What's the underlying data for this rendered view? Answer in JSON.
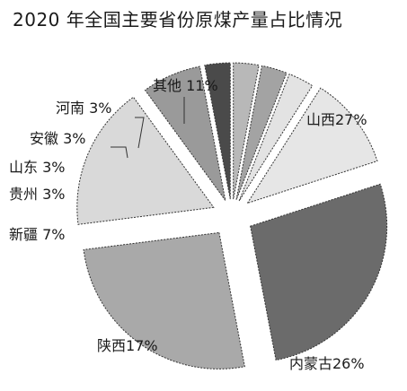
{
  "chart_data": {
    "type": "pie",
    "title": "2020 年全国主要省份原煤产量占比情况",
    "slices": [
      {
        "name": "山西",
        "value": 27,
        "label": "山西27%",
        "color": "#6b6b6b"
      },
      {
        "name": "内蒙古",
        "value": 26,
        "label": "内蒙古26%",
        "color": "#a9a9a9"
      },
      {
        "name": "陕西",
        "value": 17,
        "label": "陕西17%",
        "color": "#d9d9d9"
      },
      {
        "name": "新疆",
        "value": 7,
        "label": "新疆  7%",
        "color": "#9a9a9a"
      },
      {
        "name": "贵州",
        "value": 3,
        "label": "贵州  3%",
        "color": "#4a4a4a"
      },
      {
        "name": "山东",
        "value": 3,
        "label": "山东  3%",
        "color": "#b8b8b8"
      },
      {
        "name": "安徽",
        "value": 3,
        "label": "安徽  3%",
        "color": "#a3a3a3"
      },
      {
        "name": "河南",
        "value": 3,
        "label": "河南  3%",
        "color": "#e3e3e3"
      },
      {
        "name": "其他",
        "value": 11,
        "label": "其他  11%",
        "color": "#e6e6e6"
      }
    ],
    "legend": "none"
  }
}
